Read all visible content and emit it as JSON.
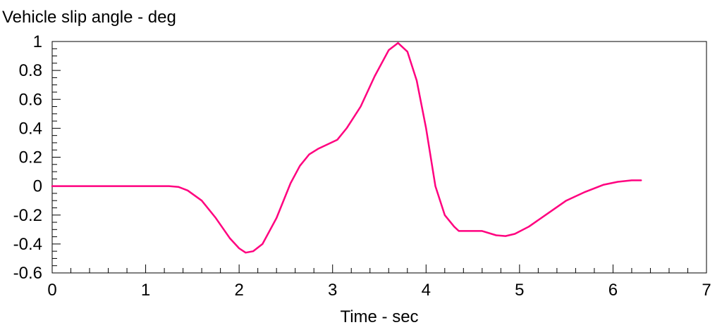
{
  "chart_data": {
    "type": "line",
    "title": "Vehicle slip angle - deg",
    "xlabel": "Time - sec",
    "ylabel": "",
    "xlim": [
      0,
      7
    ],
    "ylim": [
      -0.6,
      1
    ],
    "x_ticks": [
      "0",
      "1",
      "2",
      "3",
      "4",
      "5",
      "6",
      "7"
    ],
    "y_ticks": [
      "1",
      "0.8",
      "0.6",
      "0.4",
      "0.2",
      "0",
      "-0.2",
      "-0.4",
      "-0.6"
    ],
    "grid": false,
    "line_color": "#ff007f",
    "series": [
      {
        "x": [
          0,
          0.5,
          1.0,
          1.25,
          1.35,
          1.45,
          1.6,
          1.75,
          1.9,
          2.0,
          2.07,
          2.15,
          2.25,
          2.4,
          2.55,
          2.65,
          2.75,
          2.85,
          2.95,
          3.05,
          3.15,
          3.3,
          3.45,
          3.6,
          3.7,
          3.8,
          3.9,
          4.0,
          4.1,
          4.2,
          4.3,
          4.35,
          4.45,
          4.6,
          4.75,
          4.85,
          4.95,
          5.1,
          5.3,
          5.5,
          5.7,
          5.9,
          6.05,
          6.2,
          6.3
        ],
        "y": [
          0,
          0,
          0,
          0,
          -0.005,
          -0.03,
          -0.1,
          -0.22,
          -0.36,
          -0.43,
          -0.46,
          -0.45,
          -0.4,
          -0.22,
          0.02,
          0.14,
          0.22,
          0.26,
          0.29,
          0.32,
          0.4,
          0.55,
          0.76,
          0.94,
          0.99,
          0.93,
          0.73,
          0.4,
          0.0,
          -0.2,
          -0.28,
          -0.31,
          -0.31,
          -0.31,
          -0.34,
          -0.345,
          -0.33,
          -0.28,
          -0.19,
          -0.1,
          -0.04,
          0.01,
          0.03,
          0.04,
          0.04
        ]
      }
    ]
  }
}
